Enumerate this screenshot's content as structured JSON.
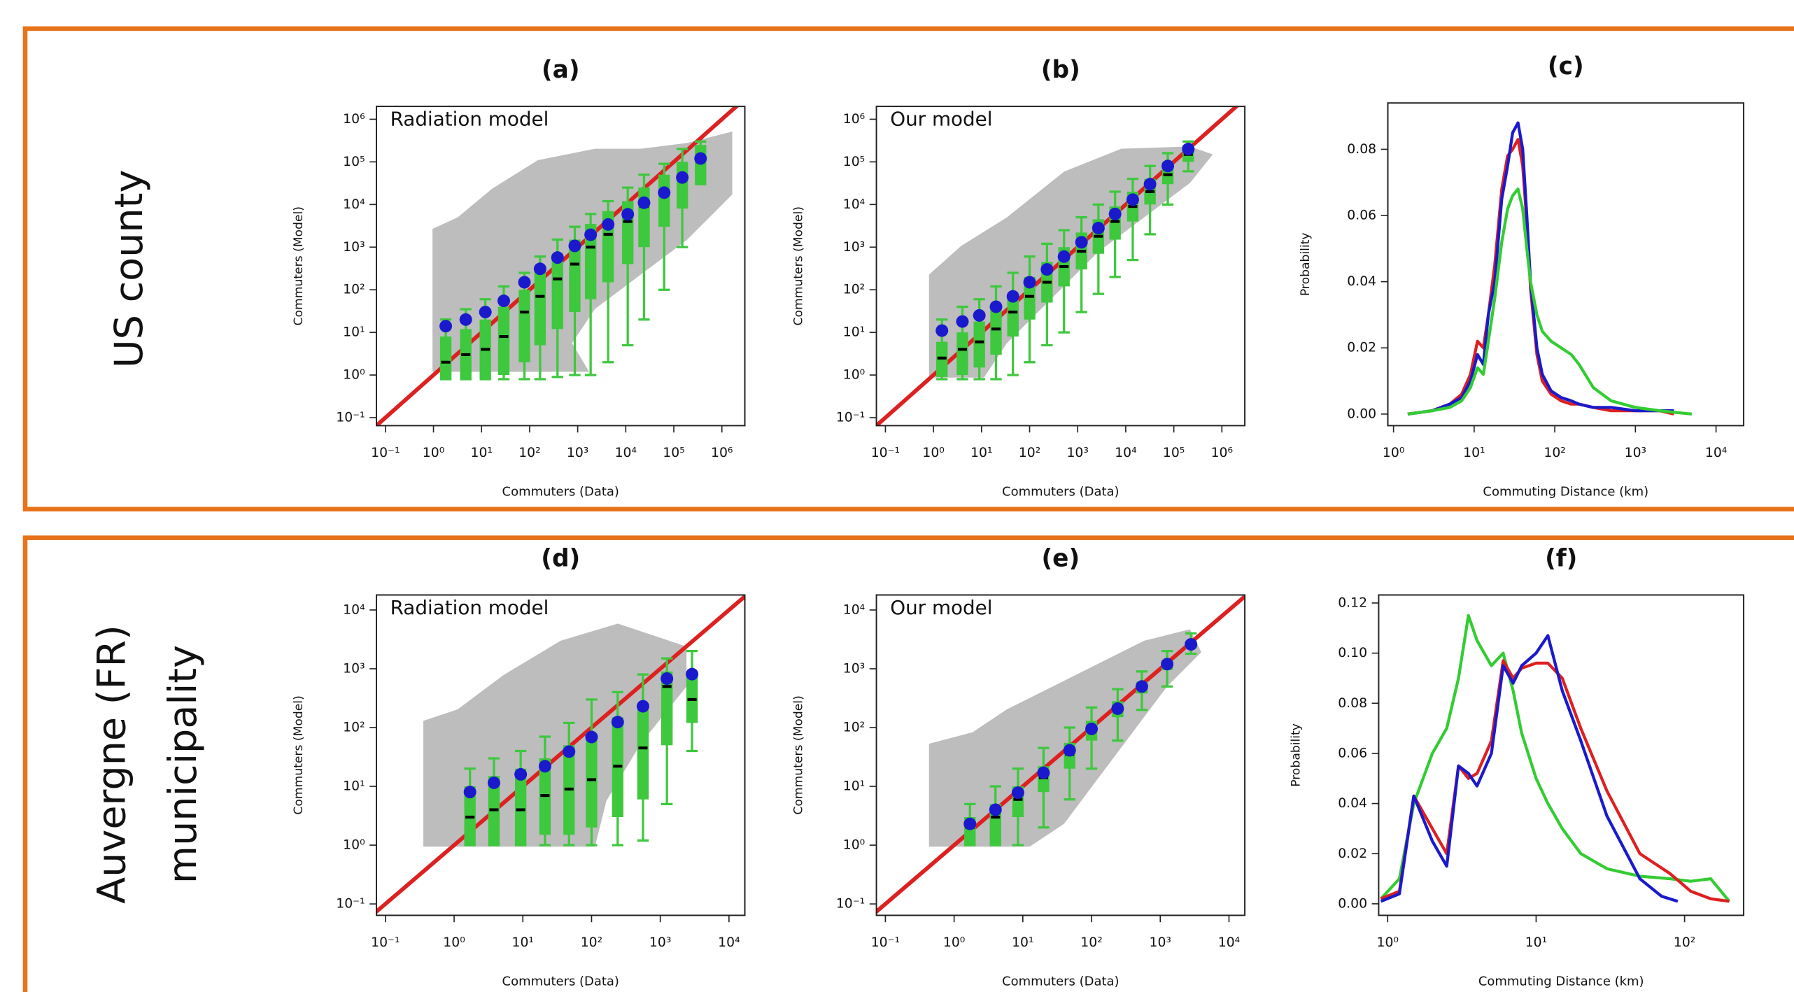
{
  "rows": [
    {
      "label": [
        "US county"
      ]
    },
    {
      "label": [
        "Auvergne (FR)",
        "municipality"
      ]
    }
  ],
  "chart_data": [
    {
      "type": "box",
      "title": "(a)",
      "annotation": "Radiation model",
      "xlabel": "Commuters (Data)",
      "ylabel": "Commuters (Model)",
      "xscale": "log",
      "yscale": "log",
      "xlim": [
        0.065,
        3000000
      ],
      "ylim": [
        0.065,
        2000000
      ],
      "diagonal_color": "#dd2020",
      "xticks": [
        {
          "value": 0.1,
          "label": "10⁻¹"
        },
        {
          "value": 1,
          "label": "10⁰"
        },
        {
          "value": 10,
          "label": "10¹"
        },
        {
          "value": 100,
          "label": "10²"
        },
        {
          "value": 1000,
          "label": "10³"
        },
        {
          "value": 10000,
          "label": "10⁴"
        },
        {
          "value": 100000,
          "label": "10⁵"
        },
        {
          "value": 1000000,
          "label": "10⁶"
        }
      ],
      "yticks": [
        {
          "value": 0.1,
          "label": "10⁻¹"
        },
        {
          "value": 1,
          "label": "10⁰"
        },
        {
          "value": 10,
          "label": "10¹"
        },
        {
          "value": 100,
          "label": "10²"
        },
        {
          "value": 1000,
          "label": "10³"
        },
        {
          "value": 10000,
          "label": "10⁴"
        },
        {
          "value": 100000,
          "label": "10⁵"
        },
        {
          "value": 1000000,
          "label": "10⁶"
        }
      ],
      "x": [
        1.8,
        4.7,
        12,
        29,
        78,
        165,
        380,
        870,
        1860,
        4300,
        11000,
        24000,
        63000,
        150000,
        360000
      ],
      "mean": {
        "color": "#1a1acc",
        "values": [
          14,
          20,
          30,
          55,
          150,
          310,
          570,
          1070,
          1950,
          3400,
          5900,
          11000,
          19000,
          43000,
          120000
        ]
      },
      "boxes": {
        "color": "#3ec83e",
        "low": [
          0.8,
          0.8,
          0.8,
          0.8,
          0.8,
          0.8,
          0.9,
          1,
          1,
          2,
          5,
          20,
          100,
          1000,
          30000
        ],
        "q1": [
          0.8,
          0.8,
          0.8,
          1,
          2,
          5,
          12,
          30,
          60,
          150,
          400,
          1000,
          3000,
          8000,
          30000
        ],
        "median": [
          2,
          3,
          4,
          8,
          30,
          70,
          180,
          400,
          1000,
          2000,
          4000,
          9000,
          20000,
          40000,
          100000
        ],
        "q3": [
          8,
          12,
          20,
          40,
          100,
          300,
          700,
          1500,
          3500,
          7000,
          12000,
          25000,
          50000,
          100000,
          250000
        ],
        "high": [
          20,
          35,
          60,
          120,
          250,
          600,
          1500,
          3000,
          6000,
          12000,
          25000,
          50000,
          90000,
          200000,
          300000
        ]
      }
    },
    {
      "type": "box",
      "title": "(b)",
      "annotation": "Our model",
      "xlabel": "Commuters (Data)",
      "ylabel": "Commuters (Model)",
      "xscale": "log",
      "yscale": "log",
      "xlim": [
        0.065,
        3000000
      ],
      "ylim": [
        0.065,
        2000000
      ],
      "diagonal_color": "#dd2020",
      "xticks": [
        {
          "value": 0.1,
          "label": "10⁻¹"
        },
        {
          "value": 1,
          "label": "10⁰"
        },
        {
          "value": 10,
          "label": "10¹"
        },
        {
          "value": 100,
          "label": "10²"
        },
        {
          "value": 1000,
          "label": "10³"
        },
        {
          "value": 10000,
          "label": "10⁴"
        },
        {
          "value": 100000,
          "label": "10⁵"
        },
        {
          "value": 1000000,
          "label": "10⁶"
        }
      ],
      "yticks": [
        {
          "value": 0.1,
          "label": "10⁻¹"
        },
        {
          "value": 1,
          "label": "10⁰"
        },
        {
          "value": 10,
          "label": "10¹"
        },
        {
          "value": 100,
          "label": "10²"
        },
        {
          "value": 1000,
          "label": "10³"
        },
        {
          "value": 10000,
          "label": "10⁴"
        },
        {
          "value": 100000,
          "label": "10⁵"
        },
        {
          "value": 1000000,
          "label": "10⁶"
        }
      ],
      "x": [
        1.5,
        4,
        9,
        20,
        45,
        100,
        230,
        520,
        1200,
        2700,
        6000,
        14000,
        32000,
        75000,
        200000
      ],
      "mean": {
        "color": "#1a1acc",
        "values": [
          11,
          18,
          25,
          40,
          70,
          150,
          300,
          600,
          1300,
          2800,
          6000,
          13000,
          30000,
          80000,
          200000
        ]
      },
      "boxes": {
        "color": "#3ec83e",
        "low": [
          0.8,
          0.8,
          0.8,
          0.8,
          1,
          2,
          5,
          10,
          30,
          80,
          200,
          500,
          2000,
          10000,
          60000
        ],
        "q1": [
          0.9,
          1,
          1.5,
          3,
          8,
          20,
          50,
          120,
          300,
          700,
          1500,
          4000,
          10000,
          30000,
          100000
        ],
        "median": [
          2.5,
          4,
          6,
          12,
          30,
          70,
          150,
          350,
          800,
          1800,
          4000,
          9000,
          20000,
          50000,
          150000
        ],
        "q3": [
          6,
          10,
          18,
          35,
          80,
          200,
          450,
          1000,
          2200,
          4500,
          9000,
          20000,
          40000,
          100000,
          250000
        ],
        "high": [
          20,
          40,
          60,
          120,
          250,
          600,
          1200,
          2500,
          5000,
          10000,
          20000,
          40000,
          80000,
          160000,
          300000
        ]
      }
    },
    {
      "type": "line",
      "title": "(c)",
      "xlabel": "Commuting Distance (km)",
      "ylabel": "Probability",
      "xscale": "log",
      "xlim": [
        0.85,
        22000
      ],
      "ylim": [
        -0.0035,
        0.094
      ],
      "xticks": [
        {
          "value": 1,
          "label": "10⁰"
        },
        {
          "value": 10,
          "label": "10¹"
        },
        {
          "value": 100,
          "label": "10²"
        },
        {
          "value": 1000,
          "label": "10³"
        },
        {
          "value": 10000,
          "label": "10⁴"
        }
      ],
      "yticks": [
        {
          "value": 0,
          "label": "0.00"
        },
        {
          "value": 0.02,
          "label": "0.02"
        },
        {
          "value": 0.04,
          "label": "0.04"
        },
        {
          "value": 0.06,
          "label": "0.06"
        },
        {
          "value": 0.08,
          "label": "0.08"
        }
      ],
      "series": [
        {
          "color": "#dd2020",
          "x": [
            1.5,
            3,
            5,
            7,
            9,
            11,
            13,
            15,
            18,
            22,
            26,
            30,
            35,
            40,
            45,
            50,
            60,
            70,
            90,
            120,
            160,
            200,
            300,
            500,
            1000,
            2000,
            3000
          ],
          "values": [
            0,
            0.001,
            0.003,
            0.006,
            0.012,
            0.022,
            0.02,
            0.03,
            0.045,
            0.068,
            0.078,
            0.08,
            0.083,
            0.075,
            0.058,
            0.038,
            0.018,
            0.01,
            0.006,
            0.004,
            0.003,
            0.003,
            0.002,
            0.001,
            0.001,
            0.001,
            0
          ]
        },
        {
          "color": "#1a1acc",
          "x": [
            1.5,
            3,
            5,
            7,
            9,
            11,
            13,
            15,
            18,
            22,
            26,
            30,
            35,
            40,
            45,
            50,
            60,
            70,
            90,
            120,
            160,
            200,
            300,
            500,
            1000,
            2000,
            3000
          ],
          "values": [
            0,
            0.001,
            0.003,
            0.005,
            0.01,
            0.018,
            0.015,
            0.03,
            0.04,
            0.065,
            0.075,
            0.085,
            0.088,
            0.08,
            0.06,
            0.04,
            0.02,
            0.012,
            0.007,
            0.005,
            0.004,
            0.003,
            0.002,
            0.002,
            0.001,
            0.001,
            0.001
          ]
        },
        {
          "color": "#33cc33",
          "x": [
            1.5,
            3,
            5,
            7,
            9,
            11,
            13,
            15,
            18,
            22,
            26,
            30,
            35,
            40,
            45,
            50,
            60,
            70,
            90,
            120,
            160,
            200,
            300,
            500,
            1000,
            2000,
            5000
          ],
          "values": [
            0,
            0.001,
            0.002,
            0.004,
            0.008,
            0.014,
            0.012,
            0.022,
            0.035,
            0.052,
            0.062,
            0.066,
            0.068,
            0.062,
            0.05,
            0.04,
            0.03,
            0.025,
            0.022,
            0.02,
            0.018,
            0.015,
            0.008,
            0.004,
            0.002,
            0.001,
            0
          ]
        }
      ]
    },
    {
      "type": "box",
      "title": "(d)",
      "annotation": "Radiation model",
      "xlabel": "Commuters (Data)",
      "ylabel": "Commuters (Model)",
      "xscale": "log",
      "yscale": "log",
      "xlim": [
        0.074,
        17000
      ],
      "ylim": [
        0.064,
        18000
      ],
      "diagonal_color": "#dd2020",
      "xticks": [
        {
          "value": 0.1,
          "label": "10⁻¹"
        },
        {
          "value": 1,
          "label": "10⁰"
        },
        {
          "value": 10,
          "label": "10¹"
        },
        {
          "value": 100,
          "label": "10²"
        },
        {
          "value": 1000,
          "label": "10³"
        },
        {
          "value": 10000,
          "label": "10⁴"
        }
      ],
      "yticks": [
        {
          "value": 0.1,
          "label": "10⁻¹"
        },
        {
          "value": 1,
          "label": "10⁰"
        },
        {
          "value": 10,
          "label": "10¹"
        },
        {
          "value": 100,
          "label": "10²"
        },
        {
          "value": 1000,
          "label": "10³"
        },
        {
          "value": 10000,
          "label": "10⁴"
        }
      ],
      "x": [
        1.7,
        3.8,
        9.3,
        21,
        47,
        100,
        240,
        560,
        1250,
        2900
      ],
      "mean": {
        "color": "#1a1acc",
        "values": [
          8,
          11.5,
          16,
          22,
          39,
          69,
          124,
          230,
          680,
          810
        ]
      },
      "boxes": {
        "color": "#3ec83e",
        "low": [
          1,
          1,
          1,
          1,
          1,
          1,
          1,
          1.2,
          5,
          40
        ],
        "q1": [
          1,
          1,
          1,
          1.5,
          1.5,
          2,
          3,
          6,
          50,
          120
        ],
        "median": [
          3,
          4,
          4,
          7,
          9,
          13,
          22,
          45,
          500,
          300
        ],
        "q3": [
          10,
          15,
          20,
          30,
          50,
          80,
          150,
          200,
          900,
          900
        ],
        "high": [
          20,
          30,
          40,
          70,
          120,
          300,
          400,
          800,
          1500,
          2000
        ]
      }
    },
    {
      "type": "box",
      "title": "(e)",
      "annotation": "Our model",
      "xlabel": "Commuters (Data)",
      "ylabel": "Commuters (Model)",
      "xscale": "log",
      "yscale": "log",
      "xlim": [
        0.074,
        17000
      ],
      "ylim": [
        0.064,
        18000
      ],
      "diagonal_color": "#dd2020",
      "xticks": [
        {
          "value": 0.1,
          "label": "10⁻¹"
        },
        {
          "value": 1,
          "label": "10⁰"
        },
        {
          "value": 10,
          "label": "10¹"
        },
        {
          "value": 100,
          "label": "10²"
        },
        {
          "value": 1000,
          "label": "10³"
        },
        {
          "value": 10000,
          "label": "10⁴"
        }
      ],
      "yticks": [
        {
          "value": 0.1,
          "label": "10⁻¹"
        },
        {
          "value": 1,
          "label": "10⁰"
        },
        {
          "value": 10,
          "label": "10¹"
        },
        {
          "value": 100,
          "label": "10²"
        },
        {
          "value": 1000,
          "label": "10³"
        },
        {
          "value": 10000,
          "label": "10⁴"
        }
      ],
      "x": [
        1.7,
        4,
        8.5,
        20,
        48,
        100,
        240,
        540,
        1260,
        2800
      ],
      "mean": {
        "color": "#1a1acc",
        "values": [
          2.3,
          4,
          7.8,
          17,
          41,
          95,
          210,
          500,
          1200,
          2600
        ]
      },
      "boxes": {
        "color": "#3ec83e",
        "low": [
          1,
          1,
          1,
          2,
          6,
          20,
          60,
          200,
          500,
          1800
        ],
        "q1": [
          1,
          1,
          3,
          8,
          20,
          60,
          150,
          380,
          950,
          2200
        ],
        "median": [
          2,
          3,
          6,
          14,
          35,
          85,
          190,
          450,
          1100,
          2500
        ],
        "q3": [
          3,
          5,
          10,
          22,
          55,
          130,
          280,
          600,
          1400,
          3000
        ],
        "high": [
          5,
          10,
          20,
          45,
          100,
          220,
          450,
          900,
          2000,
          4000
        ]
      }
    },
    {
      "type": "line",
      "title": "(f)",
      "xlabel": "Commuting Distance (km)",
      "ylabel": "Probability",
      "xscale": "log",
      "xlim": [
        0.87,
        250
      ],
      "ylim": [
        -0.0046,
        0.1232
      ],
      "xticks": [
        {
          "value": 1,
          "label": "10⁰"
        },
        {
          "value": 10,
          "label": "10¹"
        },
        {
          "value": 100,
          "label": "10²"
        }
      ],
      "yticks": [
        {
          "value": 0,
          "label": "0.00"
        },
        {
          "value": 0.02,
          "label": "0.02"
        },
        {
          "value": 0.04,
          "label": "0.04"
        },
        {
          "value": 0.06,
          "label": "0.06"
        },
        {
          "value": 0.08,
          "label": "0.08"
        },
        {
          "value": 0.1,
          "label": "0.10"
        },
        {
          "value": 0.12,
          "label": "0.12"
        }
      ],
      "series": [
        {
          "color": "#33cc33",
          "x": [
            0.9,
            1.2,
            1.5,
            2,
            2.5,
            3,
            3.5,
            4,
            5,
            6,
            7,
            8,
            10,
            12,
            15,
            20,
            30,
            50,
            80,
            110,
            150,
            200
          ],
          "values": [
            0.002,
            0.01,
            0.04,
            0.06,
            0.07,
            0.09,
            0.115,
            0.105,
            0.095,
            0.1,
            0.085,
            0.068,
            0.05,
            0.04,
            0.03,
            0.02,
            0.014,
            0.011,
            0.01,
            0.009,
            0.01,
            0.001
          ]
        },
        {
          "color": "#dd2020",
          "x": [
            0.9,
            1.2,
            1.5,
            2,
            2.5,
            3,
            3.5,
            4,
            5,
            6,
            7,
            8,
            10,
            12,
            15,
            20,
            30,
            50,
            80,
            110,
            150,
            200
          ],
          "values": [
            0.002,
            0.005,
            0.043,
            0.03,
            0.02,
            0.055,
            0.05,
            0.052,
            0.065,
            0.097,
            0.09,
            0.094,
            0.096,
            0.096,
            0.09,
            0.07,
            0.045,
            0.02,
            0.012,
            0.005,
            0.002,
            0.001
          ]
        },
        {
          "color": "#1a1acc",
          "x": [
            0.9,
            1.2,
            1.5,
            2,
            2.5,
            3,
            3.5,
            4,
            5,
            6,
            7,
            8,
            10,
            12,
            15,
            20,
            30,
            50,
            70,
            90
          ],
          "values": [
            0.001,
            0.004,
            0.043,
            0.025,
            0.015,
            0.055,
            0.052,
            0.047,
            0.06,
            0.095,
            0.088,
            0.095,
            0.1,
            0.107,
            0.085,
            0.065,
            0.035,
            0.01,
            0.003,
            0.001
          ]
        }
      ]
    }
  ]
}
